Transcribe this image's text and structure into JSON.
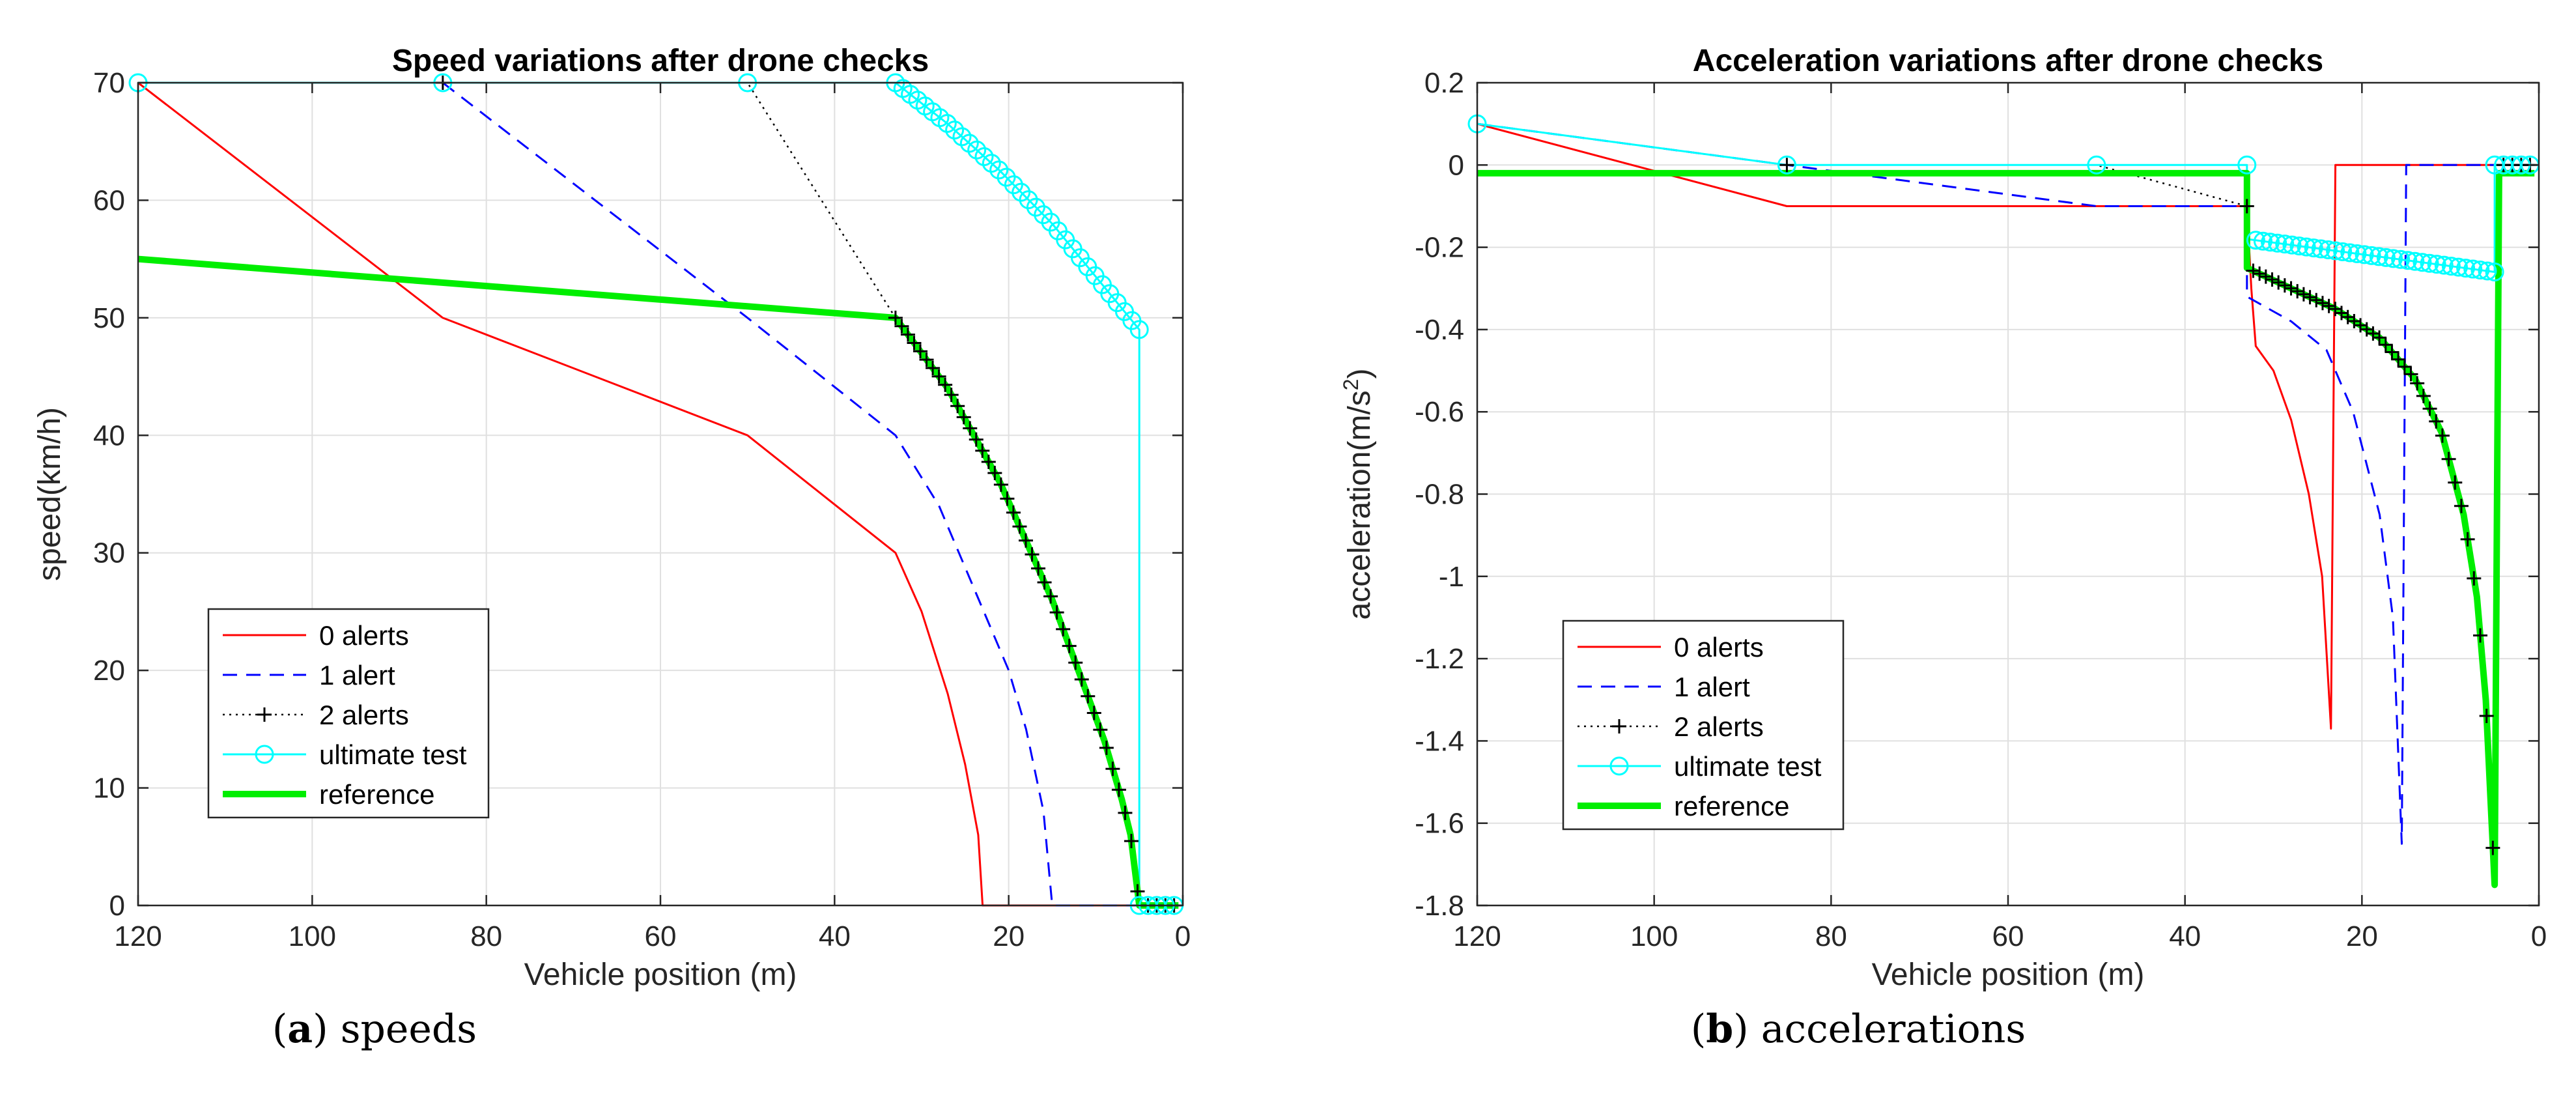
{
  "colors": {
    "red": "#ff0000",
    "blue": "#0000ff",
    "black": "#000000",
    "cyan": "#00ffff",
    "green": "#00ee00",
    "grid": "#e0e0e0",
    "axis": "#262626"
  },
  "captions": {
    "a": {
      "label": "(a)",
      "letter": "a",
      "text": "speeds"
    },
    "b": {
      "label": "(b)",
      "letter": "b",
      "text": "accelerations"
    }
  },
  "chart_data": [
    {
      "type": "line",
      "id": "speed",
      "title": "Speed variations after drone checks",
      "xlabel": "Vehicle position (m)",
      "ylabel": "speed(km/h)",
      "xlim": [
        120,
        0
      ],
      "xreversed": true,
      "ylim": [
        0,
        70
      ],
      "xticks": [
        120,
        100,
        80,
        60,
        40,
        20,
        0
      ],
      "yticks": [
        0,
        10,
        20,
        30,
        40,
        50,
        60,
        70
      ],
      "grid": true,
      "legend_position": "bottom-left",
      "series": [
        {
          "name": "0 alerts",
          "color": "red",
          "style": "solid",
          "marker": "none",
          "width": 3,
          "points": [
            [
              120,
              70
            ],
            [
              85,
              50
            ],
            [
              50,
              40
            ],
            [
              33,
              30
            ],
            [
              30,
              25
            ],
            [
              27,
              18
            ],
            [
              25,
              12
            ],
            [
              23.5,
              6
            ],
            [
              23,
              0
            ],
            [
              5,
              0
            ],
            [
              0.5,
              0
            ]
          ]
        },
        {
          "name": "1 alert",
          "color": "blue",
          "style": "dash",
          "marker": "none",
          "width": 3,
          "points": [
            [
              120,
              70
            ],
            [
              85,
              70
            ],
            [
              50,
              50
            ],
            [
              33,
              40
            ],
            [
              28,
              34
            ],
            [
              24,
              27
            ],
            [
              20,
              20
            ],
            [
              18,
              15
            ],
            [
              16,
              8
            ],
            [
              15,
              0
            ],
            [
              5,
              0
            ],
            [
              0.5,
              0
            ]
          ]
        },
        {
          "name": "2 alerts",
          "color": "black",
          "style": "dot",
          "marker": "plus",
          "width": 2.5,
          "points": [
            [
              120,
              70
            ],
            [
              85,
              70
            ],
            [
              50,
              70
            ],
            [
              33,
              50
            ],
            [
              30,
              47
            ],
            [
              27,
              44
            ],
            [
              24,
              40
            ],
            [
              21,
              36
            ],
            [
              18,
              31
            ],
            [
              15,
              26
            ],
            [
              12,
              20
            ],
            [
              9,
              14
            ],
            [
              7,
              9
            ],
            [
              6,
              6
            ],
            [
              5.5,
              3
            ],
            [
              5,
              0
            ],
            [
              0.5,
              0
            ]
          ]
        },
        {
          "name": "ultimate test",
          "color": "cyan",
          "style": "solid",
          "marker": "circle",
          "width": 3,
          "points": [
            [
              120,
              70
            ],
            [
              85,
              70
            ],
            [
              50,
              70
            ],
            [
              33,
              70
            ],
            [
              27,
              66.5
            ],
            [
              21,
              62.5
            ],
            [
              15,
              58
            ],
            [
              10,
              53.5
            ],
            [
              5,
              49
            ],
            [
              5,
              0
            ],
            [
              0.5,
              0
            ]
          ]
        },
        {
          "name": "reference",
          "color": "green",
          "style": "solid",
          "marker": "none",
          "width": 10,
          "points": [
            [
              120,
              55
            ],
            [
              33,
              50
            ],
            [
              30,
              47
            ],
            [
              27,
              44
            ],
            [
              24,
              40
            ],
            [
              21,
              36
            ],
            [
              18,
              31
            ],
            [
              15,
              26
            ],
            [
              12,
              20
            ],
            [
              9,
              14
            ],
            [
              7,
              9
            ],
            [
              6,
              6
            ],
            [
              5.5,
              3
            ],
            [
              5,
              0
            ],
            [
              0.5,
              0
            ]
          ]
        }
      ],
      "markers": {
        "ultimate test": [
          [
            120,
            70
          ],
          [
            85,
            70
          ],
          [
            50,
            70
          ],
          [
            5,
            0
          ],
          [
            4,
            0
          ],
          [
            3,
            0
          ],
          [
            2,
            0
          ],
          [
            1,
            0
          ]
        ],
        "2 alerts": [
          [
            85,
            70
          ],
          [
            4,
            0
          ],
          [
            3,
            0
          ],
          [
            2,
            0
          ],
          [
            1,
            0
          ]
        ]
      }
    },
    {
      "type": "line",
      "id": "acceleration",
      "title": "Acceleration variations after drone checks",
      "xlabel": "Vehicle position (m)",
      "ylabel": "acceleration(m/s",
      "ylabel_sup": "2",
      "ylabel_end": ")",
      "xlim": [
        120,
        0
      ],
      "xreversed": true,
      "ylim": [
        -1.8,
        0.2
      ],
      "xticks": [
        120,
        100,
        80,
        60,
        40,
        20,
        0
      ],
      "yticks": [
        0.2,
        0,
        -0.2,
        -0.4,
        -0.6,
        -0.8,
        -1,
        -1.2,
        -1.4,
        -1.6,
        -1.8
      ],
      "grid": true,
      "legend_position": "bottom-left",
      "series": [
        {
          "name": "0 alerts",
          "color": "red",
          "style": "solid",
          "marker": "none",
          "width": 3,
          "points": [
            [
              120,
              0.1
            ],
            [
              85,
              -0.1
            ],
            [
              33,
              -0.1
            ],
            [
              32.5,
              -0.3
            ],
            [
              32,
              -0.44
            ],
            [
              30,
              -0.5
            ],
            [
              28,
              -0.62
            ],
            [
              26,
              -0.8
            ],
            [
              24.5,
              -1.0
            ],
            [
              23.5,
              -1.37
            ],
            [
              23,
              0
            ],
            [
              0.5,
              0
            ]
          ]
        },
        {
          "name": "1 alert",
          "color": "blue",
          "style": "dash",
          "marker": "none",
          "width": 3,
          "points": [
            [
              120,
              0.1
            ],
            [
              85,
              0
            ],
            [
              50,
              -0.1
            ],
            [
              33,
              -0.1
            ],
            [
              33,
              -0.32
            ],
            [
              28,
              -0.38
            ],
            [
              24,
              -0.45
            ],
            [
              21,
              -0.6
            ],
            [
              18,
              -0.85
            ],
            [
              16.5,
              -1.1
            ],
            [
              15.5,
              -1.65
            ],
            [
              15,
              0
            ],
            [
              0.5,
              0
            ]
          ]
        },
        {
          "name": "2 alerts",
          "color": "black",
          "style": "dot",
          "marker": "plus",
          "width": 2.5,
          "points": [
            [
              120,
              0.1
            ],
            [
              85,
              0
            ],
            [
              50,
              0
            ],
            [
              33,
              -0.1
            ],
            [
              33,
              -0.25
            ],
            [
              28,
              -0.3
            ],
            [
              23,
              -0.35
            ],
            [
              18,
              -0.42
            ],
            [
              14,
              -0.52
            ],
            [
              11,
              -0.65
            ],
            [
              8.5,
              -0.85
            ],
            [
              7,
              -1.05
            ],
            [
              6,
              -1.3
            ],
            [
              5,
              -1.75
            ],
            [
              4.5,
              0
            ],
            [
              0.5,
              0
            ]
          ]
        },
        {
          "name": "ultimate test",
          "color": "cyan",
          "style": "solid",
          "marker": "circle",
          "width": 3,
          "points": [
            [
              120,
              0.1
            ],
            [
              85,
              0
            ],
            [
              50,
              0
            ],
            [
              33,
              0
            ],
            [
              33,
              -0.18
            ],
            [
              5,
              -0.26
            ],
            [
              5,
              0
            ],
            [
              0.5,
              0
            ]
          ]
        },
        {
          "name": "reference",
          "color": "green",
          "style": "solid",
          "marker": "none",
          "width": 10,
          "points": [
            [
              120,
              -0.02
            ],
            [
              33,
              -0.02
            ],
            [
              33,
              -0.25
            ],
            [
              28,
              -0.3
            ],
            [
              23,
              -0.35
            ],
            [
              18,
              -0.42
            ],
            [
              14,
              -0.52
            ],
            [
              11,
              -0.65
            ],
            [
              8.5,
              -0.85
            ],
            [
              7,
              -1.05
            ],
            [
              6,
              -1.3
            ],
            [
              5,
              -1.75
            ],
            [
              4.5,
              -0.02
            ],
            [
              0.5,
              -0.02
            ]
          ]
        }
      ],
      "markers": {
        "ultimate test": [
          [
            120,
            0.1
          ],
          [
            85,
            0
          ],
          [
            50,
            0
          ],
          [
            33,
            0
          ],
          [
            5,
            0
          ],
          [
            4,
            0
          ],
          [
            3,
            0
          ],
          [
            2,
            0
          ],
          [
            1,
            0
          ]
        ],
        "2 alerts": [
          [
            85,
            0
          ],
          [
            4,
            0
          ],
          [
            3,
            0
          ],
          [
            2,
            0
          ],
          [
            1,
            0
          ]
        ]
      }
    }
  ]
}
